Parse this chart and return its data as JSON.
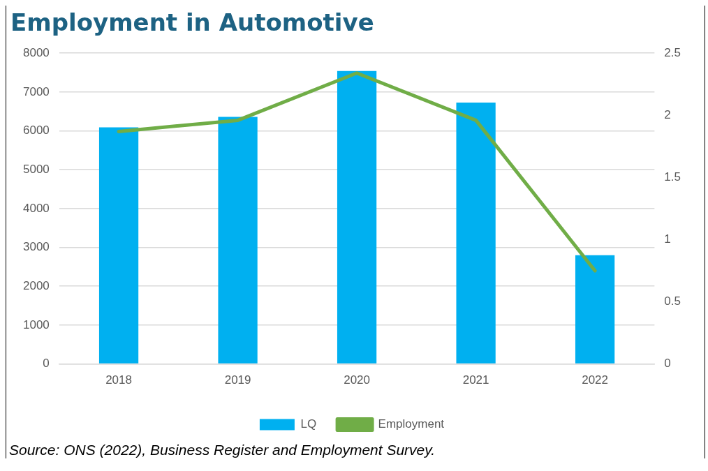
{
  "chart_data": {
    "type": "bar",
    "title": "Employment in Automotive",
    "categories": [
      "2018",
      "2019",
      "2020",
      "2021",
      "2022"
    ],
    "series": [
      {
        "name": "LQ",
        "color": "#00b0f0",
        "values": [
          6090,
          6360,
          7540,
          6730,
          2800
        ]
      },
      {
        "name": "Employment",
        "type": "line",
        "axis": "y2",
        "color": "#70ad47",
        "values": [
          1.87,
          1.96,
          2.34,
          1.96,
          0.75
        ]
      }
    ],
    "ylim": [
      0,
      8000
    ],
    "yticks": [
      0,
      1000,
      2000,
      3000,
      4000,
      5000,
      6000,
      7000,
      8000
    ],
    "y2lim": [
      0,
      2.5
    ],
    "y2ticks": [
      0,
      0.5,
      1,
      1.5,
      2,
      2.5
    ],
    "grid": "y",
    "legend": "bottom",
    "marker": "none",
    "annotations": [
      "Source: ONS (2022), Business Register and Employment Survey."
    ]
  }
}
